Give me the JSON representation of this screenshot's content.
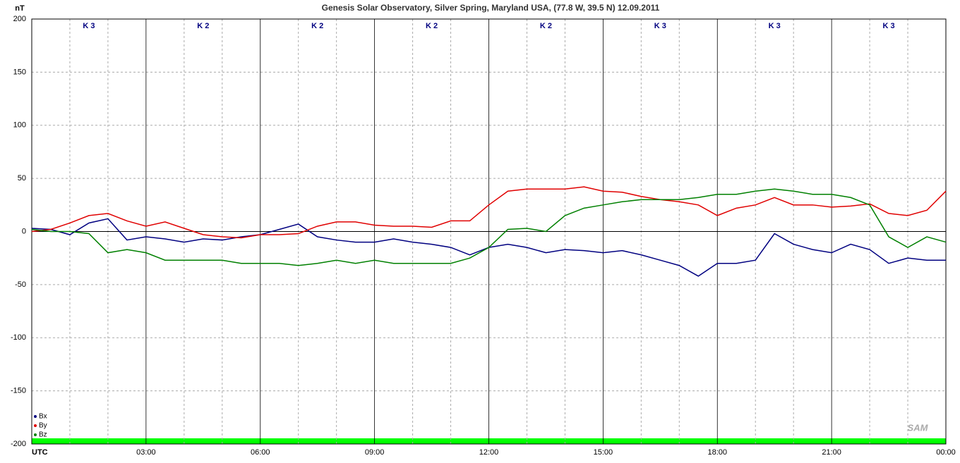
{
  "chart_data": {
    "type": "line",
    "title": "Genesis Solar Observatory, Silver Spring, Maryland USA, (77.8 W, 39.5 N)  12.09.2011",
    "y_label": "nT",
    "logo": "SAM",
    "k_index": [
      "K 3",
      "K 2",
      "K 2",
      "K 2",
      "K 2",
      "K 3",
      "K 3",
      "K 3"
    ],
    "x": [
      0,
      0.5,
      1,
      1.5,
      2,
      2.5,
      3,
      3.5,
      4,
      4.5,
      5,
      5.5,
      6,
      6.5,
      7,
      7.5,
      8,
      8.5,
      9,
      9.5,
      10,
      10.5,
      11,
      11.5,
      12,
      12.5,
      13,
      13.5,
      14,
      14.5,
      15,
      15.5,
      16,
      16.5,
      17,
      17.5,
      18,
      18.5,
      19,
      19.5,
      20,
      20.5,
      21,
      21.5,
      22,
      22.5,
      23,
      23.5,
      24
    ],
    "series": [
      {
        "name": "Bx",
        "color": "#000080",
        "values": [
          3,
          2,
          -3,
          8,
          12,
          -8,
          -5,
          -7,
          -10,
          -7,
          -8,
          -5,
          -3,
          2,
          7,
          -5,
          -8,
          -10,
          -10,
          -7,
          -10,
          -12,
          -15,
          -22,
          -15,
          -12,
          -15,
          -20,
          -17,
          -18,
          -20,
          -18,
          -22,
          -27,
          -32,
          -42,
          -30,
          -30,
          -27,
          -2,
          -12,
          -17,
          -20,
          -12,
          -17,
          -30,
          -25,
          -27,
          -27
        ]
      },
      {
        "name": "By",
        "color": "#e00000",
        "values": [
          0,
          2,
          8,
          15,
          17,
          10,
          5,
          9,
          3,
          -3,
          -5,
          -6,
          -3,
          -3,
          -2,
          5,
          9,
          9,
          6,
          5,
          5,
          4,
          10,
          10,
          25,
          38,
          40,
          40,
          40,
          42,
          38,
          37,
          33,
          30,
          28,
          25,
          15,
          22,
          25,
          32,
          25,
          25,
          23,
          24,
          26,
          17,
          15,
          20,
          38
        ]
      },
      {
        "name": "Bz",
        "color": "#008000",
        "values": [
          2,
          0,
          0,
          -2,
          -20,
          -17,
          -20,
          -27,
          -27,
          -27,
          -27,
          -30,
          -30,
          -30,
          -32,
          -30,
          -27,
          -30,
          -27,
          -30,
          -30,
          -30,
          -30,
          -25,
          -15,
          2,
          3,
          0,
          15,
          22,
          25,
          28,
          30,
          30,
          30,
          32,
          35,
          35,
          38,
          40,
          38,
          35,
          35,
          32,
          25,
          -5,
          -15,
          -5,
          -10
        ]
      }
    ],
    "xlim": [
      0,
      24
    ],
    "xticks": [
      {
        "value": 0,
        "label": "UTC"
      },
      {
        "value": 3,
        "label": "03:00"
      },
      {
        "value": 6,
        "label": "06:00"
      },
      {
        "value": 9,
        "label": "09:00"
      },
      {
        "value": 12,
        "label": "12:00"
      },
      {
        "value": 15,
        "label": "15:00"
      },
      {
        "value": 18,
        "label": "18:00"
      },
      {
        "value": 21,
        "label": "21:00"
      },
      {
        "value": 24,
        "label": "00:00"
      }
    ],
    "ylim": [
      -200,
      200
    ],
    "yticks": [
      -200,
      -150,
      -100,
      -50,
      0,
      50,
      100,
      150,
      200
    ],
    "grid": true
  }
}
